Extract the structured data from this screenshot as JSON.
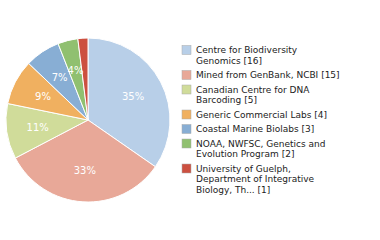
{
  "chart_data": {
    "type": "pie",
    "categories": [
      "Centre for Biodiversity\nGenomics [16]",
      "Mined from GenBank, NCBI [15]",
      "Canadian Centre for DNA\nBarcoding [5]",
      "Generic Commercial Labs [4]",
      "Coastal Marine Biolabs [3]",
      "NOAA, NWFSC, Genetics and\nEvolution Program [2]",
      "University of Guelph,\nDepartment of Integrative\nBiology, Th... [1]"
    ],
    "values": [
      35,
      33,
      11,
      9,
      7,
      4,
      2
    ],
    "value_labels": [
      "35%",
      "33%",
      "11%",
      "9%",
      "7%",
      "4%",
      null
    ],
    "colors": [
      "#b8cfe8",
      "#e8a898",
      "#d0dc9a",
      "#f0b060",
      "#88aed4",
      "#90c070",
      "#cc5040"
    ],
    "data_labels": true,
    "legend": "right"
  }
}
